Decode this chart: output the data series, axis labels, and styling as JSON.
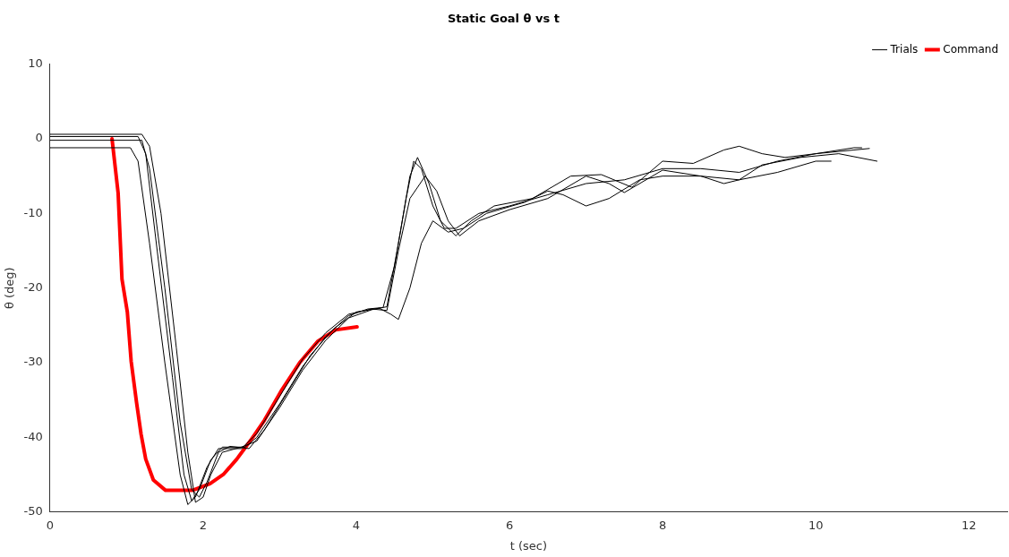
{
  "chart_data": {
    "type": "line",
    "title": "Static Goal θ vs t",
    "xlabel": "t (sec)",
    "ylabel": "θ (deg)",
    "xlim": [
      0,
      12.5
    ],
    "xticks": [
      0,
      2,
      4,
      6,
      8,
      10,
      12
    ],
    "ylim": [
      -50,
      10
    ],
    "yticks": [
      -50,
      -40,
      -30,
      -20,
      -10,
      0,
      10
    ],
    "grid": false,
    "legend": "top right",
    "marker": "none",
    "line_style": "solid",
    "series": [
      {
        "name": "Trials",
        "color": "#000000",
        "x": [
          0,
          1.15,
          1.25,
          1.4,
          1.6,
          1.75,
          1.85,
          1.95,
          2.1,
          2.25,
          2.55,
          2.7,
          3.0,
          3.3,
          3.6,
          3.9,
          4.15,
          4.35,
          4.5,
          4.65,
          4.75,
          4.85,
          5.0,
          5.15,
          5.3,
          5.6,
          6.0,
          6.5,
          7.0,
          7.5,
          8.0,
          8.5,
          9.0,
          9.5,
          10.0,
          10.5,
          10.7
        ],
        "values": [
          0.3,
          0.3,
          -2,
          -15,
          -32,
          -45,
          -48.5,
          -47,
          -43,
          -41.3,
          -41.3,
          -40,
          -35.5,
          -30.5,
          -26.5,
          -23.7,
          -22.8,
          -22.6,
          -17,
          -8,
          -3,
          -4,
          -9,
          -12,
          -12,
          -10,
          -9,
          -7.5,
          -6,
          -5.5,
          -4,
          -4,
          -4.5,
          -3,
          -2,
          -1.5,
          -1.3
        ]
      },
      {
        "color": "#000000",
        "x": [
          0,
          1.05,
          1.15,
          1.3,
          1.5,
          1.7,
          1.8,
          1.9,
          2.05,
          2.2,
          2.5,
          2.7,
          3.0,
          3.3,
          3.6,
          3.9,
          4.2,
          4.4,
          4.55,
          4.7,
          4.9,
          5.05,
          5.2,
          5.35,
          5.6,
          6.0,
          6.5,
          7.0,
          7.3,
          7.5,
          8.0,
          8.5,
          9.0,
          9.5,
          10.0,
          10.2
        ],
        "values": [
          -1.2,
          -1.2,
          -3,
          -14,
          -30,
          -45,
          -49,
          -48,
          -44,
          -41.5,
          -41.5,
          -39.5,
          -34.5,
          -29.5,
          -26,
          -23.5,
          -22.8,
          -23,
          -15,
          -8,
          -5,
          -7,
          -11,
          -13,
          -11,
          -9.5,
          -8,
          -5,
          -6,
          -7.2,
          -4.2,
          -5,
          -5.5,
          -4.5,
          -3,
          -3
        ]
      },
      {
        "color": "#000000",
        "x": [
          0,
          1.2,
          1.3,
          1.5,
          1.7,
          1.85,
          1.95,
          2.05,
          2.2,
          2.35,
          2.6,
          2.8,
          3.1,
          3.4,
          3.7,
          4.0,
          4.3,
          4.45,
          4.55,
          4.7,
          4.85,
          5.0,
          5.2,
          5.4,
          5.7,
          6.2,
          6.5,
          6.7,
          7.0,
          7.3,
          7.7,
          8.0,
          8.5,
          8.8,
          9.0,
          9.3,
          9.8,
          10.3,
          10.8
        ],
        "values": [
          -0.2,
          -0.2,
          -4,
          -20,
          -38,
          -47,
          -48,
          -46,
          -42,
          -41.2,
          -41.5,
          -39,
          -34,
          -29,
          -25.5,
          -23.2,
          -22.7,
          -23.5,
          -24.2,
          -20,
          -14,
          -11,
          -12.5,
          -12,
          -10,
          -8.5,
          -7,
          -7.5,
          -9,
          -8,
          -5.5,
          -5,
          -5,
          -6,
          -5.5,
          -3.5,
          -2.5,
          -2,
          -3
        ]
      },
      {
        "color": "#000000",
        "x": [
          0,
          1.2,
          1.3,
          1.45,
          1.65,
          1.8,
          1.9,
          2.0,
          2.1,
          2.25,
          2.5,
          2.7,
          3.0,
          3.3,
          3.6,
          3.9,
          4.2,
          4.4,
          4.55,
          4.7,
          4.8,
          4.95,
          5.1,
          5.3,
          5.5,
          5.8,
          6.3,
          6.8,
          7.2,
          7.6,
          8.0,
          8.4,
          8.8,
          9.0,
          9.3,
          9.6,
          10.0,
          10.5,
          10.6
        ],
        "values": [
          0.6,
          0.6,
          -1,
          -10,
          -28,
          -42,
          -48.7,
          -48,
          -45,
          -42,
          -41.3,
          -40.5,
          -36,
          -31,
          -27,
          -24,
          -22.9,
          -22.5,
          -14,
          -5,
          -2.5,
          -6,
          -11,
          -13,
          -11,
          -9,
          -8,
          -5,
          -4.8,
          -6.5,
          -3,
          -3.3,
          -1.5,
          -1,
          -2,
          -2.5,
          -2,
          -1.2,
          -1.2
        ]
      },
      {
        "name": "Command",
        "color": "#ff0000",
        "x": [
          0.81,
          0.89,
          0.94,
          1.01,
          1.06,
          1.13,
          1.19,
          1.25,
          1.35,
          1.51,
          1.86,
          2.09,
          2.27,
          2.44,
          2.62,
          2.8,
          3.03,
          3.26,
          3.5,
          3.73,
          4.01
        ],
        "values": [
          0,
          -7.3,
          -18.8,
          -23.2,
          -29.8,
          -35.3,
          -39.6,
          -42.9,
          -45.7,
          -47.1,
          -47.1,
          -46.2,
          -44.9,
          -42.9,
          -40.4,
          -37.7,
          -33.6,
          -30,
          -27.1,
          -25.6,
          -25.2
        ]
      }
    ]
  }
}
